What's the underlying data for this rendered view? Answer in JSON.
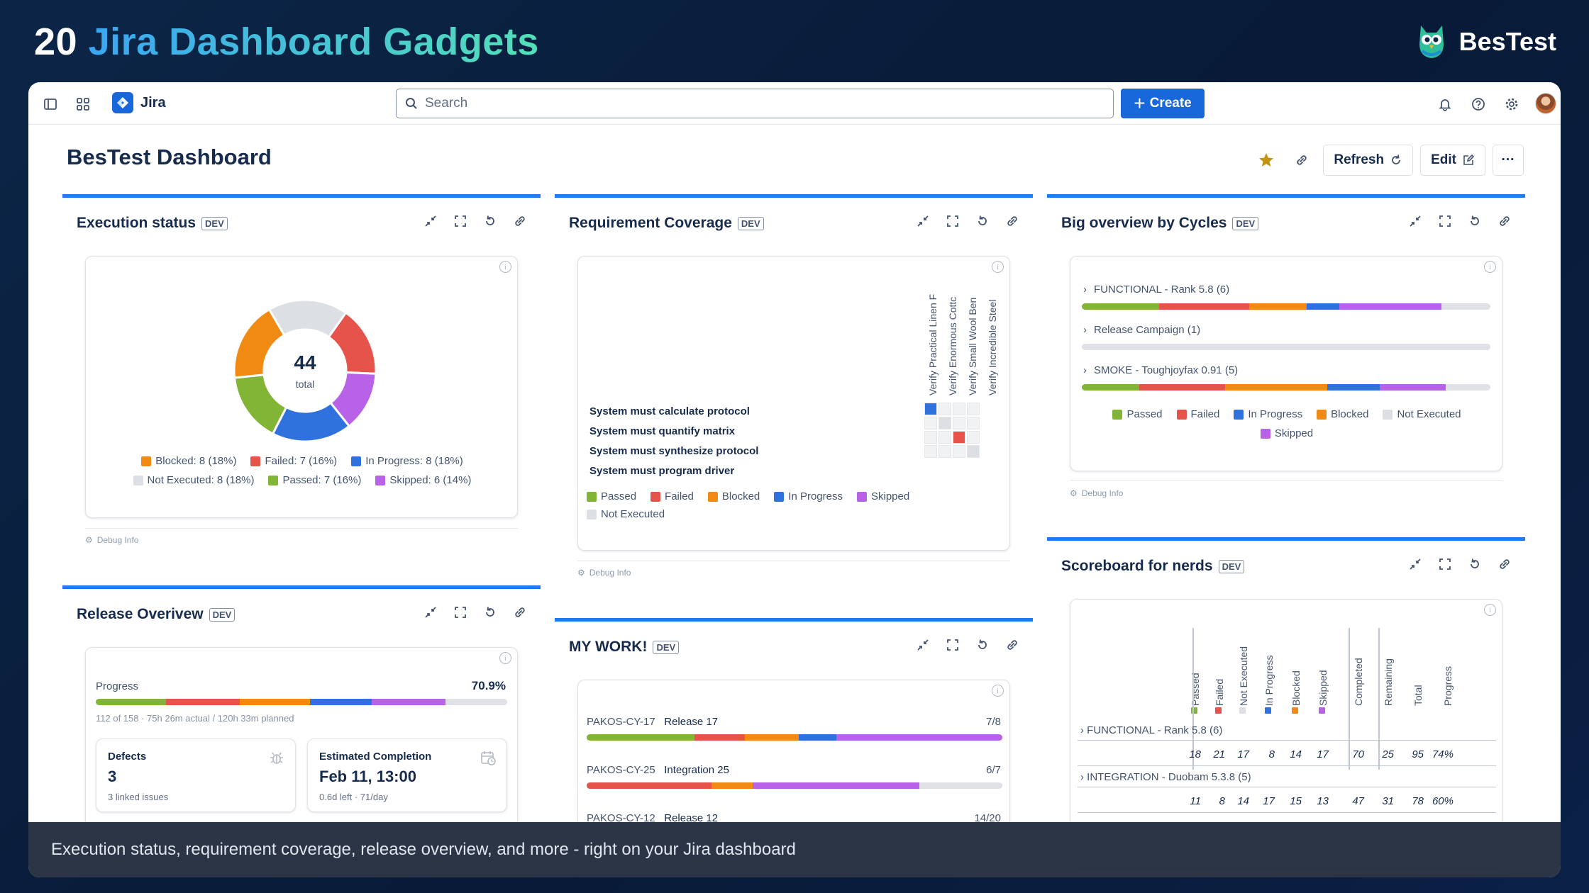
{
  "banner": {
    "prefix": "20 ",
    "highlight": "Jira Dashboard Gadgets",
    "brand": "BesTest"
  },
  "topbar": {
    "app_name": "Jira",
    "search_placeholder": "Search",
    "create_label": "Create"
  },
  "dashboard": {
    "title": "BesTest Dashboard",
    "refresh_label": "Refresh",
    "edit_label": "Edit",
    "more_label": "···"
  },
  "colors": {
    "passed": "#82b536",
    "failed": "#e5534b",
    "in_progress": "#2f72dd",
    "blocked": "#f18a13",
    "not_executed": "#dcdfe4",
    "skipped": "#b862e8",
    "accent": "#1d7af3"
  },
  "gadgets": {
    "execution_status": {
      "title": "Execution status",
      "badge": "DEV",
      "total": "44",
      "total_label": "total",
      "legend": [
        "Blocked: 8 (18%)",
        "Failed: 7 (16%)",
        "In Progress: 8 (18%)",
        "Not Executed: 8 (18%)",
        "Passed: 7 (16%)",
        "Skipped: 6 (14%)"
      ],
      "debug": "Debug Info"
    },
    "requirement_coverage": {
      "title": "Requirement Coverage",
      "badge": "DEV",
      "tests": [
        "Verify Practical Linen F",
        "Verify Enormous Cottc",
        "Verify Small Wool Ben",
        "Verify Incredible Steel"
      ],
      "requirements": [
        "System must calculate protocol",
        "System must quantify matrix",
        "System must synthesize protocol",
        "System must program driver"
      ],
      "legend": [
        "Passed",
        "Failed",
        "Blocked",
        "In Progress",
        "Skipped",
        "Not Executed"
      ],
      "debug": "Debug Info"
    },
    "big_overview": {
      "title": "Big overview by Cycles",
      "badge": "DEV",
      "cycles": [
        "FUNCTIONAL - Rank 5.8 (6)",
        "Release Campaign (1)",
        "SMOKE - Toughjoyfax 0.91 (5)"
      ],
      "legend": [
        "Passed",
        "Failed",
        "In Progress",
        "Blocked",
        "Not Executed",
        "Skipped"
      ],
      "debug": "Debug Info"
    },
    "release_overview": {
      "title": "Release Overivew",
      "badge": "DEV",
      "progress_label": "Progress",
      "progress_value": "70.9%",
      "progress_detail": "112 of 158 · 75h 26m actual / 120h 33m planned",
      "defects_label": "Defects",
      "defects_value": "3",
      "defects_sub": "3 linked issues",
      "completion_label": "Estimated Completion",
      "completion_value": "Feb 11, 13:00",
      "completion_sub": "0.6d left · 71/day"
    },
    "my_work": {
      "title": "MY WORK!",
      "badge": "DEV",
      "items": [
        {
          "key": "PAKOS-CY-17",
          "name": "Release 17",
          "count": "7/8"
        },
        {
          "key": "PAKOS-CY-25",
          "name": "Integration 25",
          "count": "6/7"
        },
        {
          "key": "PAKOS-CY-12",
          "name": "Release 12",
          "count": "14/20"
        }
      ]
    },
    "scoreboard": {
      "title": "Scoreboard for nerds",
      "badge": "DEV",
      "columns": [
        "Passed",
        "Failed",
        "Not Executed",
        "In Progress",
        "Blocked",
        "Skipped",
        "Completed",
        "Remaining",
        "Total",
        "Progress"
      ],
      "rows": [
        {
          "label": "FUNCTIONAL - Rank 5.8",
          "count": "(6)",
          "values": [
            "18",
            "21",
            "17",
            "8",
            "14",
            "17",
            "70",
            "25",
            "95",
            "74%"
          ]
        },
        {
          "label": "INTEGRATION - Duobam 5.3.8",
          "count": "(5)",
          "values": [
            "11",
            "8",
            "14",
            "17",
            "15",
            "13",
            "47",
            "31",
            "78",
            "60%"
          ]
        }
      ]
    }
  },
  "caption": "Execution status, requirement coverage, release overview, and more - right on your Jira dashboard"
}
